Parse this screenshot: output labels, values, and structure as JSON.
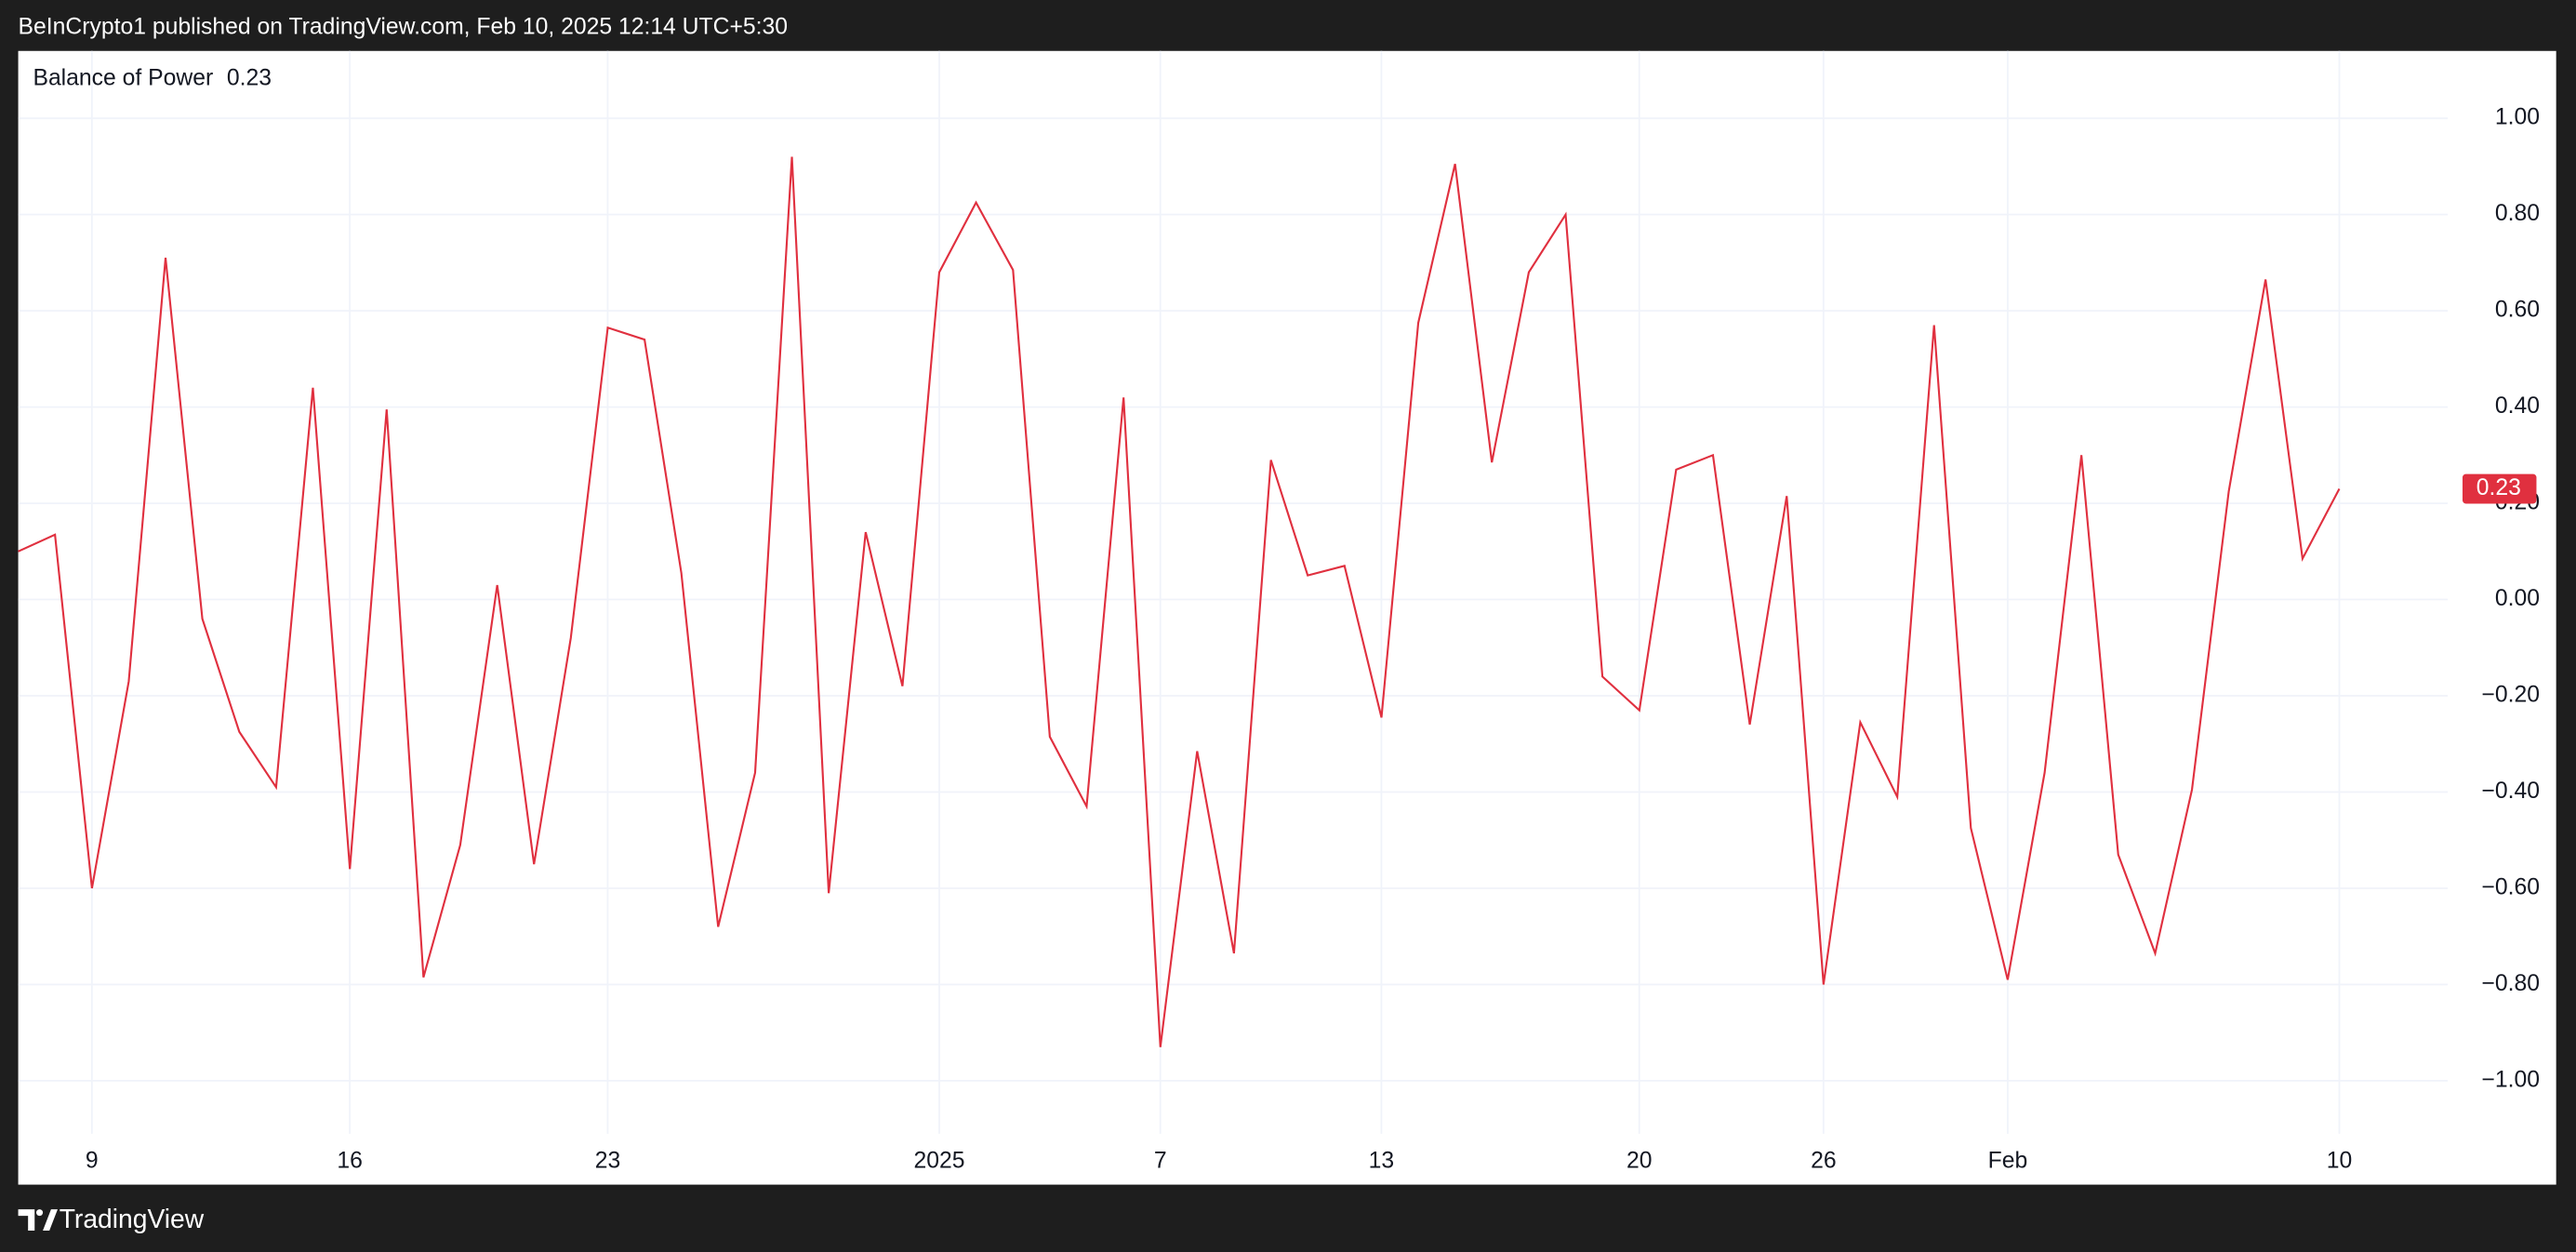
{
  "header": "BeInCrypto1 published on TradingView.com, Feb 10, 2025 12:14 UTC+5:30",
  "footer": "TradingView",
  "chart_data": {
    "type": "line",
    "categories": [
      null,
      null,
      "9",
      null,
      null,
      null,
      null,
      null,
      null,
      "16",
      null,
      null,
      null,
      null,
      null,
      null,
      "23",
      null,
      null,
      null,
      null,
      null,
      null,
      null,
      null,
      "2025",
      null,
      null,
      null,
      null,
      null,
      "7",
      null,
      null,
      null,
      null,
      null,
      "13",
      null,
      null,
      null,
      null,
      null,
      null,
      "20",
      null,
      null,
      null,
      null,
      "26",
      null,
      null,
      null,
      null,
      "Feb",
      null,
      null,
      null,
      null,
      null,
      null,
      null,
      null,
      "10"
    ],
    "series": [
      {
        "name": "Balance of Power",
        "color": "#e0303f",
        "values": [
          0.1,
          0.135,
          -0.6,
          -0.17,
          0.71,
          -0.04,
          -0.275,
          -0.39,
          0.44,
          -0.56,
          0.395,
          -0.785,
          -0.51,
          0.03,
          -0.55,
          -0.08,
          0.565,
          0.54,
          0.055,
          -0.68,
          -0.36,
          0.92,
          -0.61,
          0.14,
          -0.18,
          0.68,
          0.825,
          0.685,
          -0.285,
          -0.43,
          0.42,
          -0.93,
          -0.315,
          -0.735,
          0.29,
          0.05,
          0.07,
          -0.245,
          0.575,
          0.905,
          0.285,
          0.68,
          0.8,
          -0.16,
          -0.23,
          0.27,
          0.3,
          -0.26,
          0.215,
          -0.8,
          -0.255,
          -0.41,
          0.57,
          -0.475,
          -0.79,
          -0.36,
          0.3,
          -0.53,
          -0.735,
          -0.395,
          0.225,
          0.665,
          0.085,
          0.23
        ]
      }
    ],
    "legend_value": "0.23",
    "ylim": [
      -1.11,
      1.14
    ],
    "yticks": [
      {
        "value": -1,
        "label": "−1.00"
      },
      {
        "value": -0.8,
        "label": "−0.80"
      },
      {
        "value": -0.6,
        "label": "−0.60"
      },
      {
        "value": -0.4,
        "label": "−0.40"
      },
      {
        "value": -0.2,
        "label": "−0.20"
      },
      {
        "value": 0,
        "label": "0.00"
      },
      {
        "value": 0.2,
        "label": "0.20"
      },
      {
        "value": 0.4,
        "label": "0.40"
      },
      {
        "value": 0.6,
        "label": "0.60"
      },
      {
        "value": 0.8,
        "label": "0.80"
      },
      {
        "value": 1,
        "label": "1.00"
      }
    ],
    "grid": true
  }
}
